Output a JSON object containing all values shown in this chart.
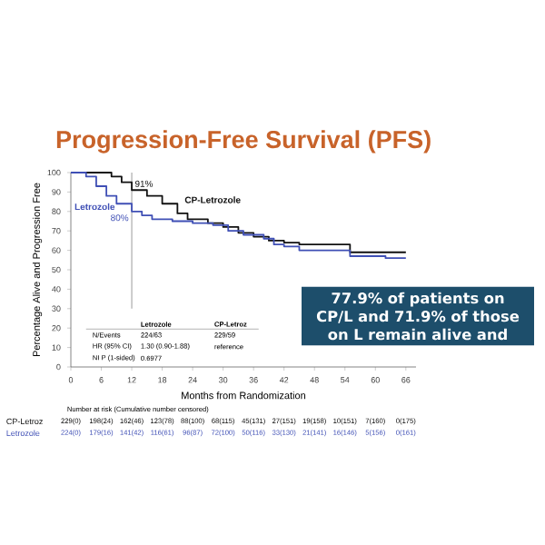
{
  "chart_data": {
    "type": "step",
    "title": "Progression-Free Survival (PFS)",
    "xlabel": "Months from Randomization",
    "ylabel": "Percentage Alive and Progression Free",
    "xlim": [
      0,
      68
    ],
    "xticks": [
      0,
      6,
      12,
      18,
      24,
      30,
      36,
      42,
      48,
      54,
      60,
      66
    ],
    "ylim": [
      0,
      100
    ],
    "yticks": [
      0,
      10,
      20,
      30,
      40,
      50,
      60,
      70,
      80,
      90,
      100
    ],
    "series": [
      {
        "name": "CP-Letrozole",
        "color": "#111111",
        "x": [
          0,
          5,
          8,
          10,
          12,
          15,
          18,
          21,
          23,
          27,
          30,
          33,
          36,
          39,
          42,
          45,
          48,
          54,
          55,
          62,
          66
        ],
        "values": [
          100,
          100,
          98,
          95,
          91,
          88,
          84,
          79,
          76,
          74,
          72,
          69,
          67,
          65,
          64,
          63,
          63,
          63,
          59,
          59,
          59
        ]
      },
      {
        "name": "Letrozole",
        "color": "#3f4fb5",
        "x": [
          0,
          3,
          5,
          7,
          9,
          12,
          14,
          16,
          20,
          24,
          28,
          31,
          34,
          38,
          40,
          42,
          45,
          54,
          55,
          62,
          66
        ],
        "values": [
          100,
          98,
          93,
          88,
          84,
          80,
          78,
          76,
          75,
          74,
          73,
          70,
          68,
          66,
          63,
          62,
          60,
          60,
          57,
          56,
          56
        ]
      }
    ],
    "ref_lines": [
      {
        "axis": "x",
        "value": 12,
        "color": "#9a9a9a"
      }
    ],
    "legend": false,
    "grid": false,
    "annotations": [
      "Number at risk (Cumulative number censored)",
      "CP-Letroz",
      "Letrozole",
      "229(0)",
      "198(24)",
      "162(46)",
      "123(78)",
      "88(100)",
      "68(115)",
      "45(131)",
      "27(151)",
      "19(158)",
      "10(151)",
      "7(160)",
      "0(175)",
      "224(0)",
      "179(16)",
      "141(42)",
      "116(61)",
      "96(87)",
      "72(100)",
      "50(116)",
      "33(130)",
      "21(141)",
      "16(146)",
      "5(156)",
      "0(161)",
      "Letrozole",
      "CP-Letroz",
      "N/Events",
      "HR (95% CI)",
      "NI P (1-sided)",
      "224/63",
      "1.30 (0.90-1.88)",
      "0.6977",
      "229/59",
      "reference",
      "77.9% of patients on CP/L and 71.9% of those on L remain alive and",
      {
        "text": "91%",
        "x": 12,
        "y": 91
      },
      {
        "text": "80%",
        "x": 12,
        "y": 80
      }
    ]
  }
}
